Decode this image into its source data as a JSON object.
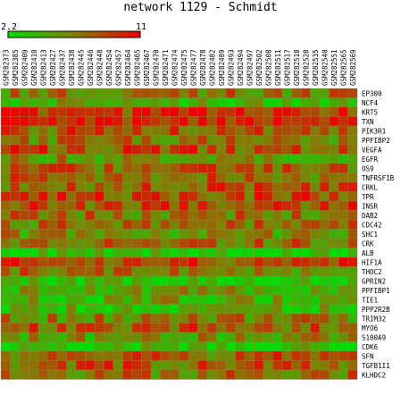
{
  "title": "network 1129 - Schmidt",
  "scale": {
    "min_label": "2.2",
    "max_label": "11",
    "low_color": "#00dd00",
    "mid_color": "#808000",
    "high_color": "#ee0000"
  },
  "chart_data": {
    "type": "heatmap",
    "title": "network 1129 - Schmidt",
    "columns": [
      "GSM282373",
      "GSM282385",
      "GSM282409",
      "GSM282410",
      "GSM282413",
      "GSM282427",
      "GSM282437",
      "GSM282438",
      "GSM282445",
      "GSM282446",
      "GSM282448",
      "GSM282454",
      "GSM282457",
      "GSM282464",
      "GSM282465",
      "GSM282467",
      "GSM282470",
      "GSM282471",
      "GSM282474",
      "GSM282475",
      "GSM282477",
      "GSM282478",
      "GSM282482",
      "GSM282489",
      "GSM282493",
      "GSM282494",
      "GSM282497",
      "GSM282502",
      "GSM282508",
      "GSM282511",
      "GSM282517",
      "GSM282518",
      "GSM282528",
      "GSM282535",
      "GSM282540",
      "GSM282551",
      "GSM282565",
      "GSM282569"
    ],
    "rows": [
      "EP300",
      "NCF4",
      "KRT5",
      "TXN",
      "PIK3R1",
      "PPFIBP2",
      "VEGFA",
      "EGFR",
      "OS9",
      "TNFRSF1B",
      "CRKL",
      "TPR",
      "INSR",
      "DAB2",
      "CDC42",
      "SHC1",
      "CRK",
      "ALB",
      "HIF1A",
      "THOC2",
      "GPRIN2",
      "PPFIBP1",
      "TIE1",
      "PPP2R2B",
      "TRIM32",
      "MYO6",
      "S100A9",
      "CDK6",
      "SFN",
      "TGFB1I1",
      "KLHDC2"
    ],
    "row_levels": [
      0.55,
      0.3,
      0.8,
      0.88,
      0.66,
      0.52,
      0.7,
      0.42,
      0.62,
      0.6,
      0.66,
      0.72,
      0.68,
      0.55,
      0.56,
      0.45,
      0.58,
      0.1,
      0.74,
      0.55,
      0.12,
      0.33,
      0.3,
      0.2,
      0.48,
      0.65,
      0.4,
      0.12,
      0.62,
      0.65,
      0.55
    ],
    "value_range": [
      2.2,
      11
    ],
    "legend": "top-left"
  }
}
